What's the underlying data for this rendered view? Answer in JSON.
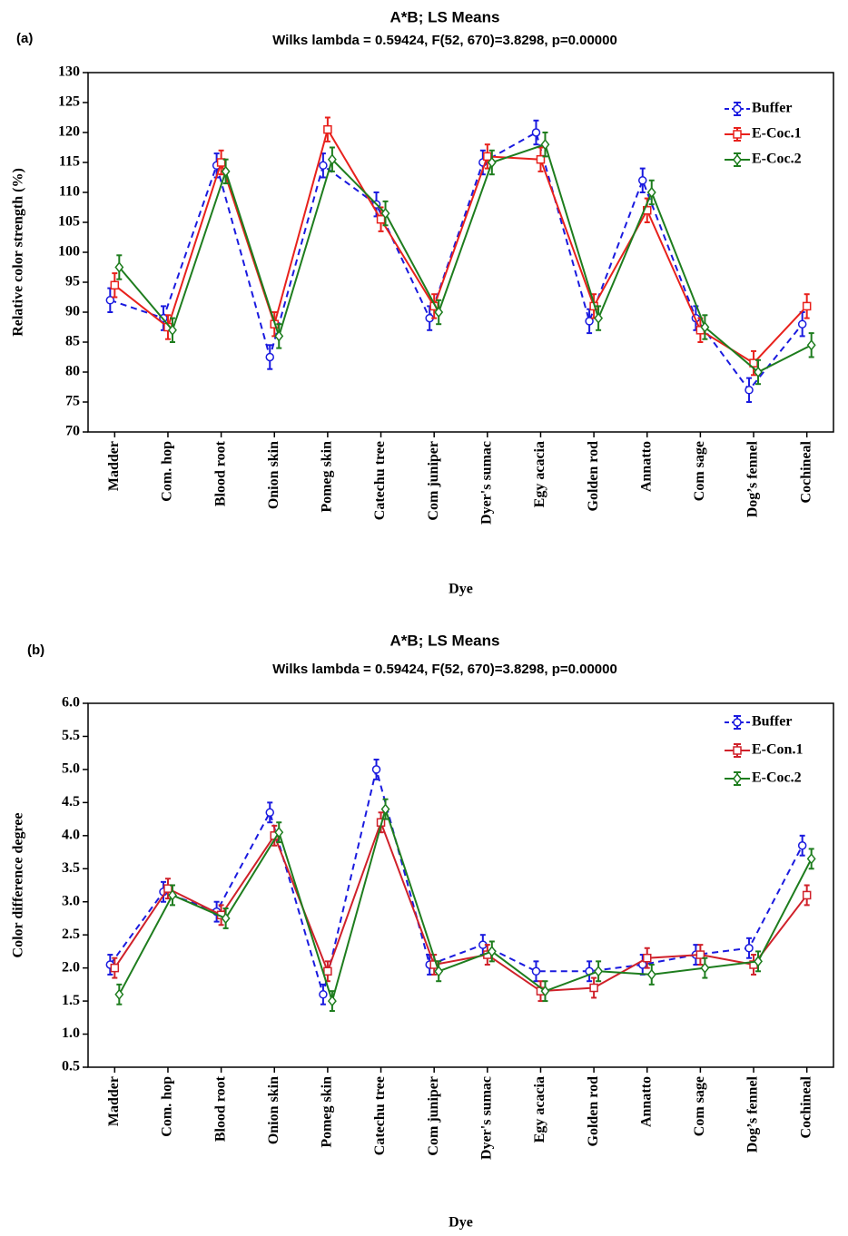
{
  "chart_data": [
    {
      "type": "line",
      "panel_label": "(a)",
      "title": "A*B; LS Means",
      "subtitle": "Wilks lambda = 0.59424, F(52, 670)=3.8298, p=0.00000",
      "x_label": "Dye",
      "y_label": "Relative color strength (%)",
      "categories": [
        "Madder",
        "Com. hop",
        "Blood root",
        "Onion skin",
        "Pomeg skin",
        "Catechu tree",
        "Com juniper",
        "Dyer's sumac",
        "Egy acacia",
        "Golden rod",
        "Annatto",
        "Com sage",
        "Dog’s fennel",
        "Cochineal"
      ],
      "ylim": [
        70,
        130
      ],
      "yticks": [
        70,
        75,
        80,
        85,
        90,
        95,
        100,
        105,
        110,
        115,
        120,
        125,
        130
      ],
      "legend": "upper right",
      "series": [
        {
          "name": "Buffer",
          "color": "#1a1adf",
          "line_style": "dashed",
          "marker": "circle",
          "values": [
            92,
            89,
            114.5,
            82.5,
            114.5,
            108,
            89,
            115,
            120,
            88.5,
            112,
            89,
            77,
            88
          ],
          "errors": [
            2,
            2,
            2,
            2,
            2,
            2,
            2,
            2,
            2,
            2,
            2,
            2,
            2,
            2
          ]
        },
        {
          "name": "E-Coc.1",
          "color": "#e8211c",
          "line_style": "solid",
          "marker": "square",
          "values": [
            94.5,
            87.5,
            115,
            88,
            120.5,
            105.5,
            91,
            116,
            115.5,
            91,
            107,
            87,
            81.5,
            91
          ],
          "errors": [
            2,
            2,
            2,
            2,
            2,
            2,
            2,
            2,
            2,
            2,
            2,
            2,
            2,
            2
          ]
        },
        {
          "name": "E-Coc.2",
          "color": "#1e7d1e",
          "line_style": "solid",
          "marker": "diamond",
          "values": [
            97.5,
            87,
            113.5,
            86,
            115.5,
            106.5,
            90,
            115,
            118,
            89,
            110,
            87.5,
            80,
            84.5
          ],
          "errors": [
            2,
            2,
            2,
            2,
            2,
            2,
            2,
            2,
            2,
            2,
            2,
            2,
            2,
            2
          ]
        }
      ]
    },
    {
      "type": "line",
      "panel_label": "(b)",
      "title": "A*B; LS Means",
      "subtitle": "Wilks lambda = 0.59424, F(52, 670)=3.8298, p=0.00000",
      "x_label": "Dye",
      "y_label": "Color difference degree",
      "categories": [
        "Madder",
        "Com. hop",
        "Blood root",
        "Onion skin",
        "Pomeg skin",
        "Catechu tree",
        "Com juniper",
        "Dyer's sumac",
        "Egy acacia",
        "Golden rod",
        "Annatto",
        "Com sage",
        "Dog’s fennel",
        "Cochineal"
      ],
      "ylim": [
        0.5,
        6.0
      ],
      "yticks": [
        0.5,
        {
          "value": 1,
          "label": "1.0"
        },
        1.5,
        {
          "value": 2,
          "label": "2.0"
        },
        2.5,
        {
          "value": 3,
          "label": "3.0"
        },
        3.5,
        {
          "value": 4,
          "label": "4.0"
        },
        4.5,
        {
          "value": 5,
          "label": "5.0"
        },
        5.5,
        {
          "value": 6,
          "label": "6.0"
        }
      ],
      "legend": "upper right",
      "series": [
        {
          "name": "Buffer",
          "color": "#1a1adf",
          "line_style": "dashed",
          "marker": "circle",
          "values": [
            2.05,
            3.15,
            2.85,
            4.35,
            1.6,
            5.0,
            2.05,
            2.35,
            1.95,
            1.95,
            2.05,
            2.2,
            2.3,
            3.85
          ],
          "errors": [
            0.15,
            0.15,
            0.15,
            0.15,
            0.15,
            0.15,
            0.15,
            0.15,
            0.15,
            0.15,
            0.15,
            0.15,
            0.15,
            0.15
          ]
        },
        {
          "name": "E-Con.1",
          "color": "#d0212a",
          "line_style": "solid",
          "marker": "square",
          "values": [
            2.0,
            3.2,
            2.8,
            4.0,
            1.95,
            4.2,
            2.05,
            2.2,
            1.65,
            1.7,
            2.15,
            2.2,
            2.05,
            3.1
          ],
          "errors": [
            0.15,
            0.15,
            0.15,
            0.15,
            0.15,
            0.15,
            0.15,
            0.15,
            0.15,
            0.15,
            0.15,
            0.15,
            0.15,
            0.15
          ]
        },
        {
          "name": "E-Coc.2",
          "color": "#1e7d1e",
          "line_style": "solid",
          "marker": "diamond",
          "values": [
            1.6,
            3.1,
            2.75,
            4.05,
            1.5,
            4.4,
            1.95,
            2.25,
            1.65,
            1.95,
            1.9,
            2.0,
            2.1,
            3.65
          ],
          "errors": [
            0.15,
            0.15,
            0.15,
            0.15,
            0.15,
            0.15,
            0.15,
            0.15,
            0.15,
            0.15,
            0.15,
            0.15,
            0.15,
            0.15
          ]
        }
      ]
    }
  ]
}
